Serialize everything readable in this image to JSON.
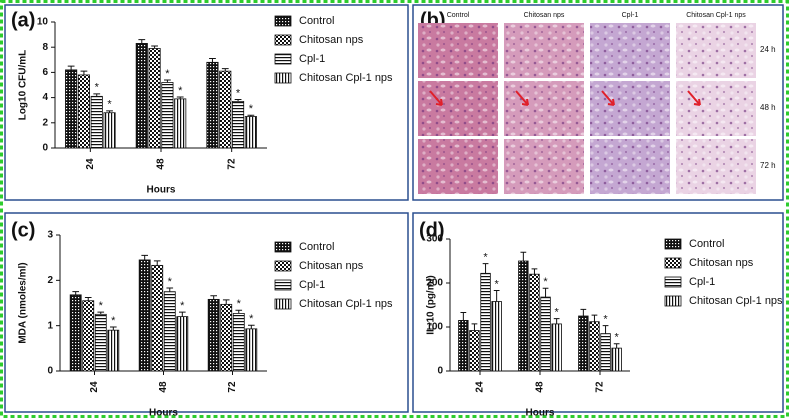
{
  "chart_data": [
    {
      "type": "bar",
      "panel_label": "(a)",
      "ylabel": "Log10 CFU/mL",
      "xlabel": "Hours",
      "categories": [
        "24",
        "48",
        "72"
      ],
      "ylim": [
        0,
        10
      ],
      "yticks": [
        0,
        2,
        4,
        6,
        8,
        10
      ],
      "legend": "right",
      "series": [
        {
          "name": "Control",
          "pattern": "grid",
          "values": [
            6.2,
            8.3,
            6.8
          ],
          "errors": [
            0.3,
            0.3,
            0.3
          ]
        },
        {
          "name": "Chitosan nps",
          "pattern": "checker",
          "values": [
            5.8,
            7.9,
            6.1
          ],
          "errors": [
            0.3,
            0.2,
            0.2
          ]
        },
        {
          "name": "Cpl-1",
          "pattern": "hlines",
          "values": [
            4.1,
            5.2,
            3.7
          ],
          "errors": [
            0.2,
            0.2,
            0.15
          ],
          "annotations": [
            "*",
            "*",
            "*"
          ]
        },
        {
          "name": "Chitosan Cpl-1 nps",
          "pattern": "vlines",
          "values": [
            2.8,
            3.9,
            2.5
          ],
          "errors": [
            0.15,
            0.15,
            0.1
          ],
          "annotations": [
            "*",
            "*",
            "*"
          ]
        }
      ]
    },
    {
      "type": "bar",
      "panel_label": "(c)",
      "ylabel": "MDA (nmoles/ml)",
      "xlabel": "Hours",
      "categories": [
        "24",
        "48",
        "72"
      ],
      "ylim": [
        0,
        3
      ],
      "yticks": [
        0,
        1,
        2,
        3
      ],
      "legend": "right",
      "series": [
        {
          "name": "Control",
          "pattern": "grid",
          "values": [
            1.68,
            2.45,
            1.58
          ],
          "errors": [
            0.07,
            0.1,
            0.08
          ]
        },
        {
          "name": "Chitosan nps",
          "pattern": "checker",
          "values": [
            1.55,
            2.33,
            1.47
          ],
          "errors": [
            0.07,
            0.1,
            0.1
          ]
        },
        {
          "name": "Cpl-1",
          "pattern": "hlines",
          "values": [
            1.25,
            1.75,
            1.27
          ],
          "errors": [
            0.05,
            0.08,
            0.07
          ],
          "annotations": [
            "*",
            "*",
            "*"
          ]
        },
        {
          "name": "Chitosan Cpl-1 nps",
          "pattern": "vlines",
          "values": [
            0.9,
            1.2,
            0.93
          ],
          "errors": [
            0.07,
            0.1,
            0.08
          ],
          "annotations": [
            "*",
            "*",
            "*"
          ]
        }
      ]
    },
    {
      "type": "bar",
      "panel_label": "(d)",
      "ylabel": "IL-10 (pg/ml)",
      "xlabel": "Hours",
      "categories": [
        "24",
        "48",
        "72"
      ],
      "ylim": [
        0,
        300
      ],
      "yticks": [
        0,
        100,
        200,
        300
      ],
      "legend": "right",
      "series": [
        {
          "name": "Control",
          "pattern": "grid",
          "values": [
            115,
            250,
            125
          ],
          "errors": [
            18,
            20,
            15
          ]
        },
        {
          "name": "Chitosan nps",
          "pattern": "checker",
          "values": [
            92,
            220,
            112
          ],
          "errors": [
            15,
            12,
            15
          ]
        },
        {
          "name": "Cpl-1",
          "pattern": "hlines",
          "values": [
            222,
            168,
            85
          ],
          "errors": [
            22,
            20,
            18
          ],
          "annotations": [
            "*",
            "*",
            "*"
          ]
        },
        {
          "name": "Chitosan Cpl-1 nps",
          "pattern": "vlines",
          "values": [
            158,
            107,
            52
          ],
          "errors": [
            25,
            12,
            10
          ],
          "annotations": [
            "*",
            "*",
            "*"
          ]
        }
      ]
    }
  ],
  "image_panel": {
    "panel_label": "(b)",
    "columns": [
      "Control",
      "Chitosan nps",
      "Cpl-1",
      "Chitosan Cpl-1 nps"
    ],
    "rows": [
      "24 h",
      "48 h",
      "72 h"
    ]
  }
}
